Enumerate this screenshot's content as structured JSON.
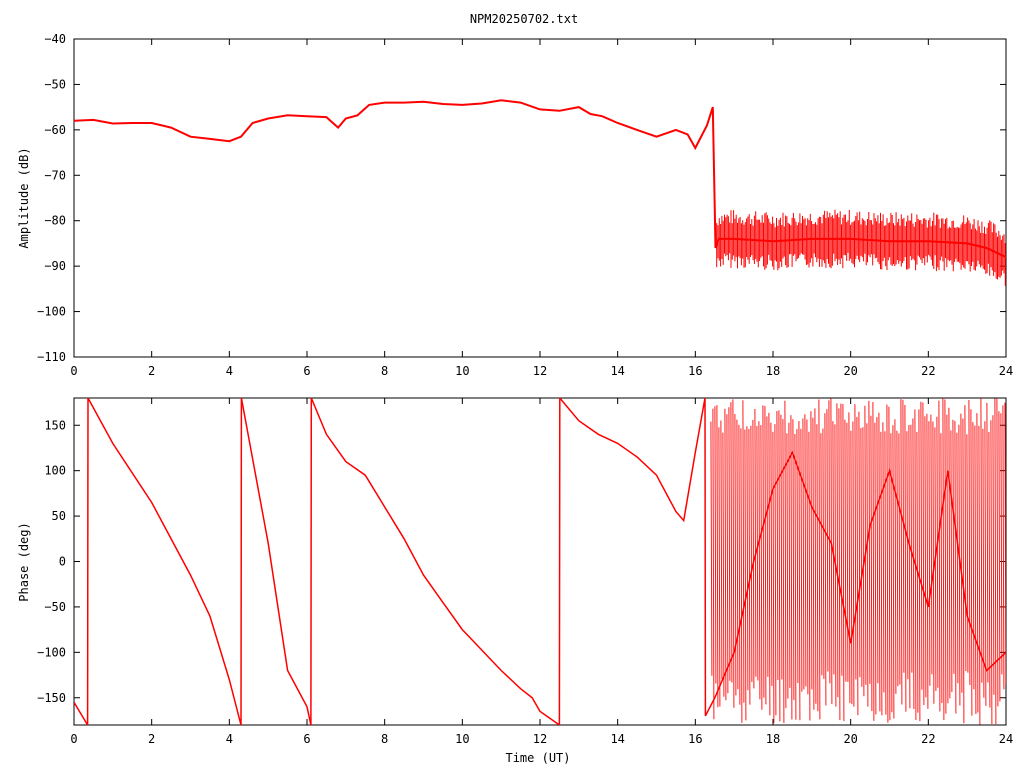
{
  "title": "NPM20250702.txt",
  "colors": {
    "series": "#ff0000",
    "frame": "#000000",
    "grid": "#a0a0a0",
    "background": "#ffffff"
  },
  "chart_data": [
    {
      "type": "line",
      "title": "NPM20250702.txt",
      "xlabel": "",
      "ylabel": "Amplitude (dB)",
      "xlim": [
        0,
        24
      ],
      "ylim": [
        -110,
        -40
      ],
      "xticks": [
        0,
        2,
        4,
        6,
        8,
        10,
        12,
        14,
        16,
        18,
        20,
        22,
        24
      ],
      "yticks": [
        -110,
        -100,
        -90,
        -80,
        -70,
        -60,
        -50,
        -40
      ],
      "ytick_labels": [
        "−110",
        "−100",
        "−90",
        "−80",
        "−70",
        "−60",
        "−50",
        "−40"
      ],
      "grid": false,
      "series": [
        {
          "color": "#ff0000",
          "x": [
            0,
            0.5,
            1,
            1.5,
            2,
            2.5,
            3,
            3.5,
            4,
            4.3,
            4.6,
            5,
            5.5,
            6,
            6.5,
            6.8,
            7,
            7.3,
            7.6,
            8,
            8.5,
            9,
            9.5,
            10,
            10.5,
            11,
            11.5,
            12,
            12.5,
            13,
            13.3,
            13.6,
            14,
            14.5,
            15,
            15.5,
            15.8,
            16,
            16.3,
            16.45,
            16.52,
            16.6,
            17,
            18,
            19,
            20,
            21,
            22,
            23,
            23.5,
            24
          ],
          "y": [
            -58,
            -57.8,
            -58.6,
            -58.5,
            -58.5,
            -59.5,
            -61.5,
            -62,
            -62.5,
            -61.5,
            -58.5,
            -57.5,
            -56.8,
            -57,
            -57.2,
            -59.5,
            -57.5,
            -56.8,
            -54.5,
            -54,
            -54,
            -53.8,
            -54.3,
            -54.5,
            -54.2,
            -53.5,
            -54,
            -55.5,
            -55.8,
            -55,
            -56.5,
            -57,
            -58.5,
            -60,
            -61.5,
            -60,
            -61,
            -64,
            -59,
            -55,
            -86,
            -84,
            -84,
            -84.5,
            -84,
            -84,
            -84.5,
            -84.5,
            -85,
            -86,
            -88
          ]
        }
      ]
    },
    {
      "type": "line",
      "xlabel": "Time (UT)",
      "ylabel": "Phase (deg)",
      "xlim": [
        0,
        24
      ],
      "ylim": [
        -180,
        180
      ],
      "xticks": [
        0,
        2,
        4,
        6,
        8,
        10,
        12,
        14,
        16,
        18,
        20,
        22,
        24
      ],
      "yticks": [
        -150,
        -100,
        -50,
        0,
        50,
        100,
        150
      ],
      "grid": false,
      "series": [
        {
          "color": "#ff0000",
          "x": [
            0,
            0.35,
            0.36,
            1,
            2,
            3,
            3.5,
            4,
            4.3,
            4.31,
            5,
            5.5,
            6,
            6.1,
            6.11,
            6.5,
            7,
            7.5,
            8,
            8.5,
            9,
            9.5,
            10,
            11,
            11.5,
            11.8,
            12,
            12.5,
            12.51,
            13,
            13.5,
            14,
            14.5,
            15,
            15.5,
            15.7,
            16,
            16.25,
            16.26,
            16.5,
            17,
            17.5,
            18,
            18.5,
            19,
            19.5,
            20,
            20.5,
            21,
            21.5,
            22,
            22.5,
            23,
            23.5,
            24
          ],
          "y": [
            -155,
            -180,
            180,
            130,
            65,
            -15,
            -60,
            -130,
            -180,
            180,
            20,
            -120,
            -160,
            -180,
            180,
            140,
            110,
            95,
            60,
            25,
            -15,
            -45,
            -75,
            -120,
            -140,
            -150,
            -165,
            -180,
            180,
            155,
            140,
            130,
            115,
            95,
            55,
            45,
            120,
            180,
            -170,
            -150,
            -100,
            0,
            80,
            120,
            60,
            20,
            -90,
            40,
            100,
            20,
            -50,
            100,
            -60,
            -120,
            -100
          ]
        }
      ]
    }
  ]
}
